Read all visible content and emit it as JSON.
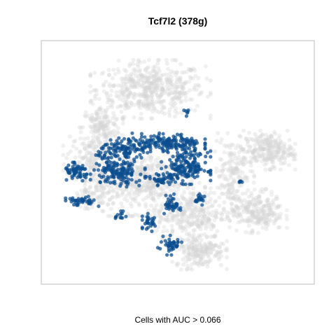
{
  "chart_data": {
    "type": "scatter",
    "title": "Tcf7l2 (378g)",
    "xlabel": "Cells with AUC > 0.066",
    "ylabel": "",
    "xlim": [
      0,
      100
    ],
    "ylim": [
      0,
      100
    ],
    "grid": false,
    "legend": "none",
    "colors": {
      "background_cells": "#d3d3d3",
      "positive_cells": "#0b4d8f",
      "frame": "#bdbdbd"
    },
    "series": [
      {
        "name": "background",
        "description_regions": [
          {
            "cx": 40,
            "cy": 80,
            "rx": 22,
            "ry": 12,
            "n": 520
          },
          {
            "cx": 22,
            "cy": 64,
            "rx": 8,
            "ry": 10,
            "n": 160
          },
          {
            "cx": 18,
            "cy": 52,
            "rx": 10,
            "ry": 10,
            "n": 140
          },
          {
            "cx": 38,
            "cy": 42,
            "rx": 22,
            "ry": 14,
            "n": 520
          },
          {
            "cx": 70,
            "cy": 46,
            "rx": 8,
            "ry": 16,
            "n": 180
          },
          {
            "cx": 55,
            "cy": 28,
            "rx": 14,
            "ry": 10,
            "n": 260
          },
          {
            "cx": 58,
            "cy": 14,
            "rx": 10,
            "ry": 8,
            "n": 200
          },
          {
            "cx": 83,
            "cy": 55,
            "rx": 10,
            "ry": 8,
            "n": 240
          },
          {
            "cx": 79,
            "cy": 30,
            "rx": 11,
            "ry": 9,
            "n": 240
          },
          {
            "cx": 20,
            "cy": 38,
            "rx": 8,
            "ry": 8,
            "n": 90
          }
        ]
      },
      {
        "name": "AUC > 0.066",
        "description_regions": [
          {
            "cx": 46,
            "cy": 58,
            "rx": 14,
            "ry": 4,
            "n": 170
          },
          {
            "cx": 30,
            "cy": 55,
            "rx": 10,
            "ry": 5,
            "n": 110
          },
          {
            "cx": 13,
            "cy": 46,
            "rx": 5,
            "ry": 4,
            "n": 60
          },
          {
            "cx": 28,
            "cy": 46,
            "rx": 10,
            "ry": 6,
            "n": 140
          },
          {
            "cx": 53,
            "cy": 48,
            "rx": 9,
            "ry": 7,
            "n": 170
          },
          {
            "cx": 44,
            "cy": 43,
            "rx": 6,
            "ry": 3,
            "n": 40
          },
          {
            "cx": 14,
            "cy": 34,
            "rx": 7,
            "ry": 2,
            "n": 40
          },
          {
            "cx": 48,
            "cy": 33,
            "rx": 3,
            "ry": 4,
            "n": 40
          },
          {
            "cx": 40,
            "cy": 25,
            "rx": 3,
            "ry": 4,
            "n": 30
          },
          {
            "cx": 47,
            "cy": 16,
            "rx": 5,
            "ry": 4,
            "n": 40
          },
          {
            "cx": 58,
            "cy": 35,
            "rx": 2,
            "ry": 3,
            "n": 20
          },
          {
            "cx": 29,
            "cy": 28,
            "rx": 2,
            "ry": 2,
            "n": 12
          },
          {
            "cx": 73,
            "cy": 42,
            "rx": 1,
            "ry": 1,
            "n": 5
          },
          {
            "cx": 53,
            "cy": 71,
            "rx": 1,
            "ry": 2,
            "n": 6
          }
        ]
      }
    ]
  }
}
